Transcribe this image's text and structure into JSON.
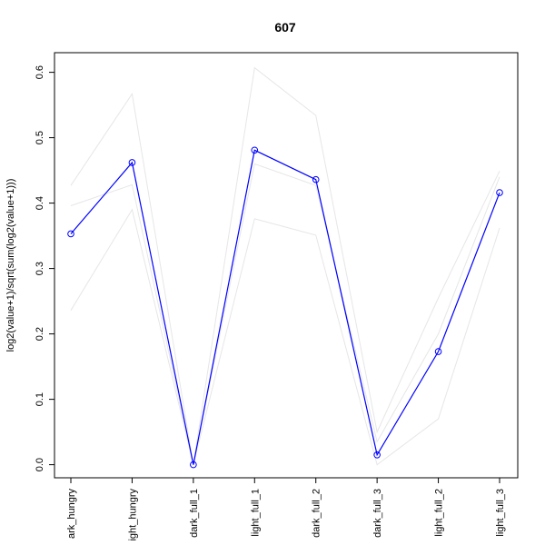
{
  "chart_data": {
    "type": "line",
    "title": "607",
    "xlabel": "",
    "ylabel": "log2(value+1)/sqrt(sum(log2(value+1)))",
    "ylim": [
      -0.02,
      0.63
    ],
    "y_ticks": [
      0.0,
      0.1,
      0.2,
      0.3,
      0.4,
      0.5,
      0.6
    ],
    "y_tick_labels": [
      "0.0",
      "0.1",
      "0.2",
      "0.3",
      "0.4",
      "0.5",
      "0.6"
    ],
    "categories": [
      "dark_hungry",
      "light_hungry",
      "dark_full_1",
      "light_full_1",
      "dark_full_2",
      "dark_full_3",
      "light_full_2",
      "light_full_3"
    ],
    "category_labels_visible": [
      "ark_hungry",
      "ight_hungry",
      "dark_full_1",
      "light_full_1",
      "dark_full_2",
      "dark_full_3",
      "light_full_2",
      "light_full_3"
    ],
    "grid": false,
    "series": [
      {
        "values": [
          0.353,
          0.462,
          0.0,
          0.481,
          0.436,
          0.015,
          0.173,
          0.416
        ],
        "color": "#0000ff",
        "markers": "open-circle",
        "emphasis": true
      },
      {
        "values": [
          0.427,
          0.567,
          0.0,
          0.607,
          0.534,
          0.05,
          0.255,
          0.449
        ],
        "color": "#e6e6e6",
        "markers": "none"
      },
      {
        "values": [
          0.396,
          0.428,
          0.0,
          0.46,
          0.427,
          0.035,
          0.2,
          0.44
        ],
        "color": "#e6e6e6",
        "markers": "none"
      },
      {
        "values": [
          0.236,
          0.39,
          0.0,
          0.376,
          0.351,
          0.0,
          0.07,
          0.362
        ],
        "color": "#e6e6e6",
        "markers": "none"
      }
    ]
  }
}
